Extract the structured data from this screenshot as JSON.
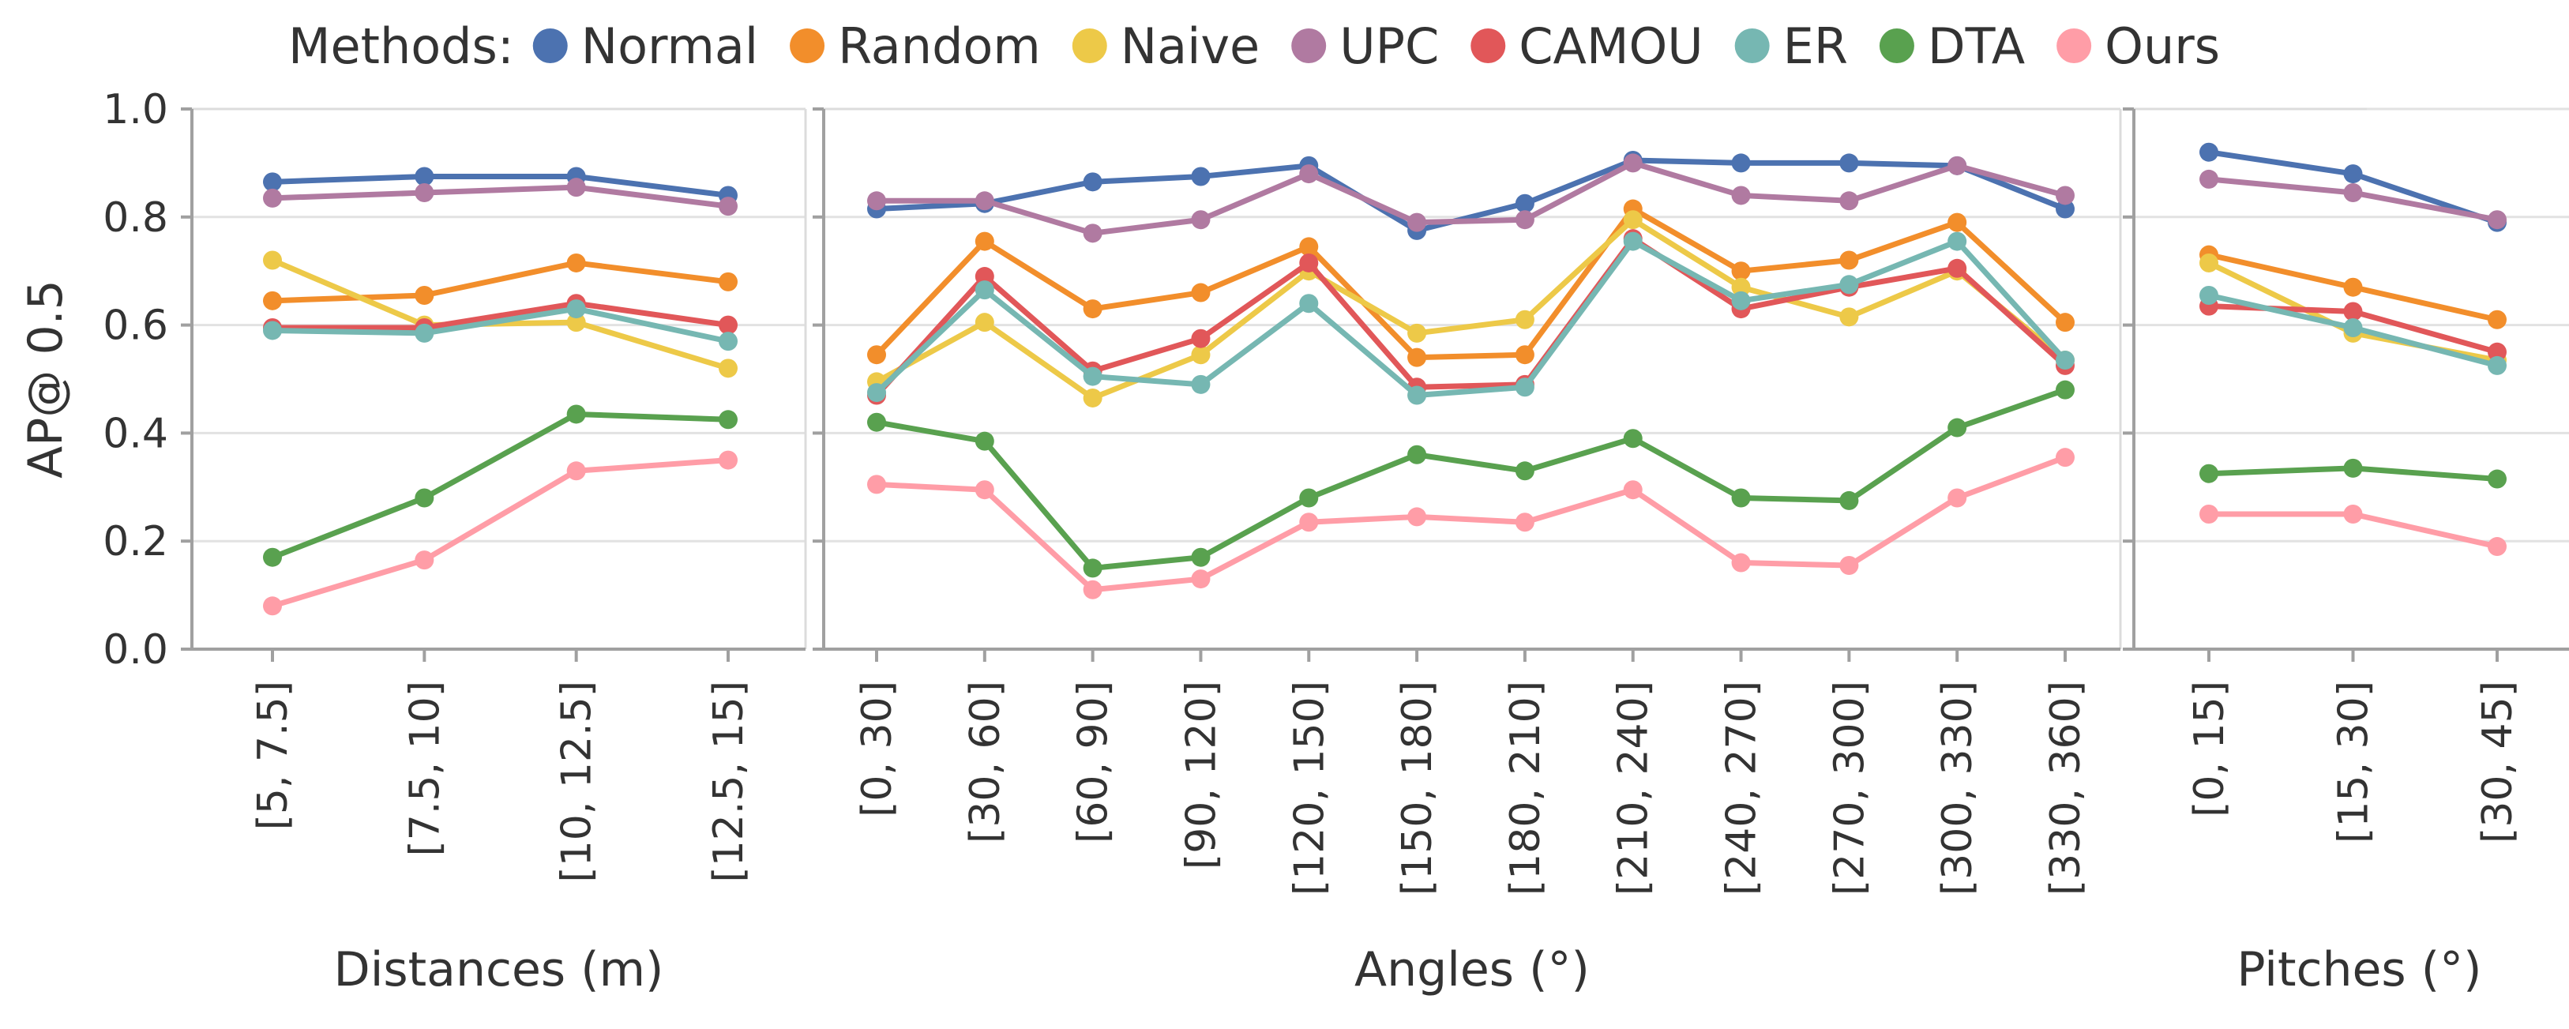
{
  "legend": {
    "title": "Methods:",
    "placement": "top-center"
  },
  "chart_data": [
    {
      "type": "line",
      "xlabel": "Distances (m)",
      "ylabel": "AP@ 0.5",
      "ylim": [
        0,
        1.0
      ],
      "yticks": [
        "0.0",
        "0.2",
        "0.4",
        "0.6",
        "0.8",
        "1.0"
      ],
      "grid": true,
      "categories": [
        "[5, 7.5]",
        "[7.5, 10]",
        "[10, 12.5]",
        "[12.5, 15]"
      ],
      "series": [
        {
          "name": "Normal",
          "color": "#4c72b0",
          "values": [
            0.865,
            0.875,
            0.875,
            0.84
          ]
        },
        {
          "name": "Random",
          "color": "#f28e2b",
          "values": [
            0.645,
            0.655,
            0.715,
            0.68
          ]
        },
        {
          "name": "Naive",
          "color": "#edc948",
          "values": [
            0.72,
            0.6,
            0.605,
            0.52
          ]
        },
        {
          "name": "UPC",
          "color": "#b07aa1",
          "values": [
            0.835,
            0.845,
            0.855,
            0.82
          ]
        },
        {
          "name": "CAMOU",
          "color": "#e15759",
          "values": [
            0.595,
            0.595,
            0.64,
            0.6
          ]
        },
        {
          "name": "ER",
          "color": "#76b7b2",
          "values": [
            0.59,
            0.585,
            0.63,
            0.57
          ]
        },
        {
          "name": "DTA",
          "color": "#59a14f",
          "values": [
            0.17,
            0.28,
            0.435,
            0.425
          ]
        },
        {
          "name": "Ours",
          "color": "#ff9da7",
          "values": [
            0.08,
            0.165,
            0.33,
            0.35
          ]
        }
      ]
    },
    {
      "type": "line",
      "xlabel": "Angles (°)",
      "ylim": [
        0,
        1.0
      ],
      "grid": true,
      "categories": [
        "[0, 30]",
        "[30, 60]",
        "[60, 90]",
        "[90, 120]",
        "[120, 150]",
        "[150, 180]",
        "[180, 210]",
        "[210, 240]",
        "[240, 270]",
        "[270, 300]",
        "[300, 330]",
        "[330, 360]"
      ],
      "series": [
        {
          "name": "Normal",
          "color": "#4c72b0",
          "values": [
            0.815,
            0.825,
            0.865,
            0.875,
            0.895,
            0.775,
            0.825,
            0.905,
            0.9,
            0.9,
            0.895,
            0.815
          ]
        },
        {
          "name": "Random",
          "color": "#f28e2b",
          "values": [
            0.545,
            0.755,
            0.63,
            0.66,
            0.745,
            0.54,
            0.545,
            0.815,
            0.7,
            0.72,
            0.79,
            0.605
          ]
        },
        {
          "name": "Naive",
          "color": "#edc948",
          "values": [
            0.495,
            0.605,
            0.465,
            0.545,
            0.7,
            0.585,
            0.61,
            0.795,
            0.67,
            0.615,
            0.7,
            0.535
          ]
        },
        {
          "name": "UPC",
          "color": "#b07aa1",
          "values": [
            0.83,
            0.83,
            0.77,
            0.795,
            0.88,
            0.79,
            0.795,
            0.9,
            0.84,
            0.83,
            0.895,
            0.84
          ]
        },
        {
          "name": "CAMOU",
          "color": "#e15759",
          "values": [
            0.47,
            0.69,
            0.515,
            0.575,
            0.715,
            0.485,
            0.49,
            0.76,
            0.63,
            0.67,
            0.705,
            0.525
          ]
        },
        {
          "name": "ER",
          "color": "#76b7b2",
          "values": [
            0.475,
            0.665,
            0.505,
            0.49,
            0.64,
            0.47,
            0.485,
            0.755,
            0.645,
            0.675,
            0.755,
            0.535
          ]
        },
        {
          "name": "DTA",
          "color": "#59a14f",
          "values": [
            0.42,
            0.385,
            0.15,
            0.17,
            0.28,
            0.36,
            0.33,
            0.39,
            0.28,
            0.275,
            0.41,
            0.48
          ]
        },
        {
          "name": "Ours",
          "color": "#ff9da7",
          "values": [
            0.305,
            0.295,
            0.11,
            0.13,
            0.235,
            0.245,
            0.235,
            0.295,
            0.16,
            0.155,
            0.28,
            0.355
          ]
        }
      ]
    },
    {
      "type": "line",
      "xlabel": "Pitches (°)",
      "ylim": [
        0,
        1.0
      ],
      "grid": true,
      "categories": [
        "[0, 15]",
        "[15, 30]",
        "[30, 45]"
      ],
      "series": [
        {
          "name": "Normal",
          "color": "#4c72b0",
          "values": [
            0.92,
            0.88,
            0.79
          ]
        },
        {
          "name": "Random",
          "color": "#f28e2b",
          "values": [
            0.73,
            0.67,
            0.61
          ]
        },
        {
          "name": "Naive",
          "color": "#edc948",
          "values": [
            0.715,
            0.585,
            0.535
          ]
        },
        {
          "name": "UPC",
          "color": "#b07aa1",
          "values": [
            0.87,
            0.845,
            0.795
          ]
        },
        {
          "name": "CAMOU",
          "color": "#e15759",
          "values": [
            0.635,
            0.625,
            0.55
          ]
        },
        {
          "name": "ER",
          "color": "#76b7b2",
          "values": [
            0.655,
            0.595,
            0.525
          ]
        },
        {
          "name": "DTA",
          "color": "#59a14f",
          "values": [
            0.325,
            0.335,
            0.315
          ]
        },
        {
          "name": "Ours",
          "color": "#ff9da7",
          "values": [
            0.25,
            0.25,
            0.19
          ]
        }
      ]
    }
  ]
}
